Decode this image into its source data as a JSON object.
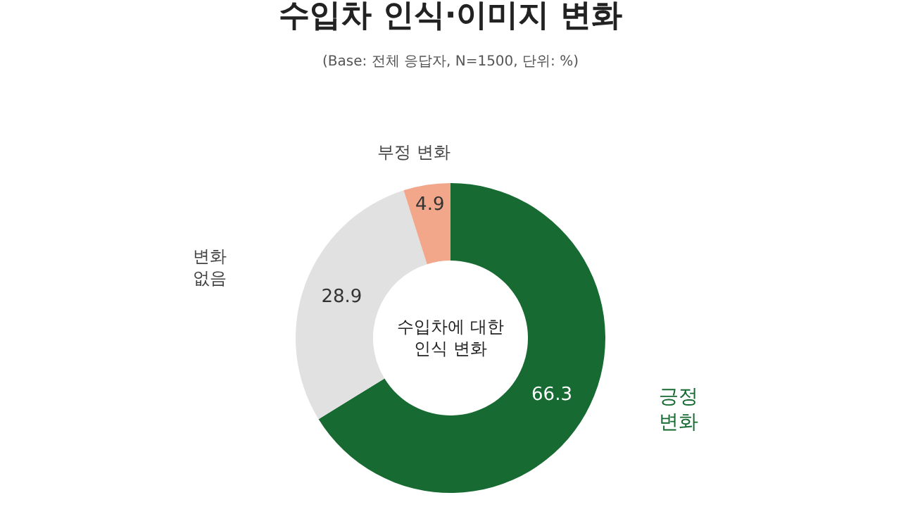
{
  "chart_data": {
    "type": "donut",
    "title": "수입차 인식·이미지 변화",
    "subtitle": "(Base: 전체 응답자, N=1500, 단위: %)",
    "categories": [
      "긍정 변화",
      "변화 없음",
      "부정 변화"
    ],
    "values": [
      66.3,
      28.9,
      4.9
    ],
    "colors": [
      "#176b32",
      "#e1e1e1",
      "#f2a78b"
    ],
    "data_labels": true,
    "annotations": [
      "수입차에 대한 인식 변화"
    ],
    "legend": false
  }
}
